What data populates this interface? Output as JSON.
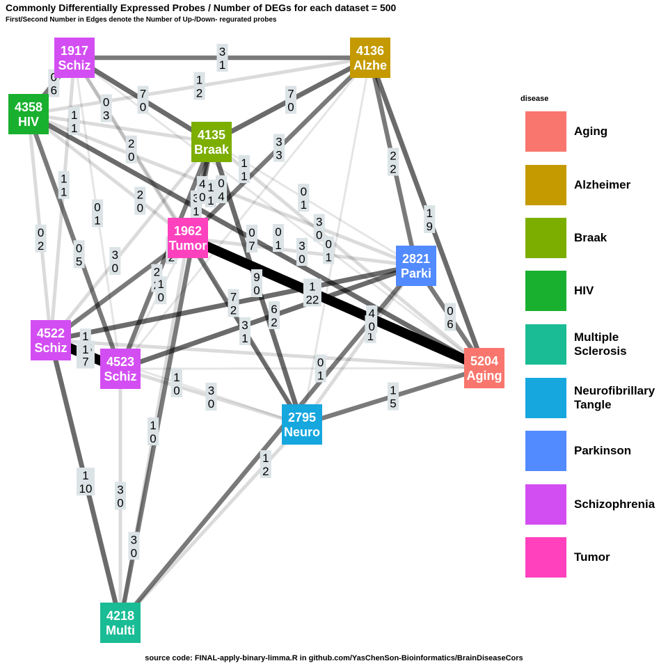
{
  "title": "Commonly Differentially Expressed Probes / Number of DEGs for each dataset = 500",
  "subtitle": "First/Second Number in Edges denote the Number of Up-/Down- regurated probes",
  "caption": "source code: FINAL-apply-binary-limma.R in github.com/YasChenSon-Bioinformatics/BrainDiseaseCors",
  "legend": {
    "title": "disease",
    "items": [
      {
        "label": "Aging",
        "color": "#F8766D"
      },
      {
        "label": "Alzheimer",
        "color": "#C49A00"
      },
      {
        "label": "Braak",
        "color": "#7CAE00"
      },
      {
        "label": "HIV",
        "color": "#1AB02F"
      },
      {
        "label": "Multiple Sclerosis",
        "color": "#1ABC95"
      },
      {
        "label": "Neurofibrillary Tangle",
        "color": "#15A7DE"
      },
      {
        "label": "Parkinson",
        "color": "#528AFF"
      },
      {
        "label": "Schizophrenia",
        "color": "#D34EF2"
      },
      {
        "label": "Tumor",
        "color": "#FF41BE"
      }
    ]
  },
  "nodes": [
    {
      "id": "n1917",
      "line1": "1917",
      "line2": "Schiz",
      "color": "#D34EF2"
    },
    {
      "id": "n4136",
      "line1": "4136",
      "line2": "Alzhe",
      "color": "#C49A00"
    },
    {
      "id": "n4358",
      "line1": "4358",
      "line2": "HIV",
      "color": "#1AB02F"
    },
    {
      "id": "n4135",
      "line1": "4135",
      "line2": "Braak",
      "color": "#7CAE00"
    },
    {
      "id": "n1962",
      "line1": "1962",
      "line2": "Tumor",
      "color": "#FF41BE"
    },
    {
      "id": "n2821",
      "line1": "2821",
      "line2": "Parki",
      "color": "#528AFF"
    },
    {
      "id": "n4522",
      "line1": "4522",
      "line2": "Schiz",
      "color": "#D34EF2"
    },
    {
      "id": "n4523",
      "line1": "4523",
      "line2": "Schiz",
      "color": "#D34EF2"
    },
    {
      "id": "n5204",
      "line1": "5204",
      "line2": "Aging",
      "color": "#F8766D"
    },
    {
      "id": "n2795",
      "line1": "2795",
      "line2": "Neuro",
      "color": "#15A7DE"
    },
    {
      "id": "n4218",
      "line1": "4218",
      "line2": "Multi",
      "color": "#1ABC95"
    }
  ],
  "edges": [
    {
      "from": "n1917",
      "to": "n4136",
      "up": "3",
      "down": "1"
    },
    {
      "from": "n4358",
      "to": "n4136",
      "up": "1",
      "down": "2"
    },
    {
      "from": "n1917",
      "to": "n4358",
      "up": "0",
      "down": "6"
    },
    {
      "from": "n1917",
      "to": "n4135",
      "up": "7",
      "down": "0"
    },
    {
      "from": "n4135",
      "to": "n4136",
      "up": "7",
      "down": "0"
    },
    {
      "from": "n1962",
      "to": "n4136",
      "up": "3",
      "down": "3"
    },
    {
      "from": "n2795",
      "to": "n4136",
      "up": "",
      "down": ""
    },
    {
      "from": "n4523",
      "to": "n4136",
      "up": "",
      "down": ""
    },
    {
      "from": "n2821",
      "to": "n4136",
      "up": "2",
      "down": "2"
    },
    {
      "from": "n5204",
      "to": "n4136",
      "up": "1",
      "down": "9"
    },
    {
      "from": "n1917",
      "to": "n2795",
      "up": "2",
      "down": "0"
    },
    {
      "from": "n1917",
      "to": "n1962",
      "up": "0",
      "down": "3"
    },
    {
      "from": "n1917",
      "to": "n4523",
      "up": "0",
      "down": "1"
    },
    {
      "from": "n1917",
      "to": "n4522",
      "up": "1",
      "down": "1"
    },
    {
      "from": "n4358",
      "to": "n4522",
      "up": "0",
      "down": "2"
    },
    {
      "from": "n4358",
      "to": "n4523",
      "up": "0",
      "down": "5"
    },
    {
      "from": "n4358",
      "to": "n5204",
      "up": "0",
      "down": "7"
    },
    {
      "from": "n4358",
      "to": "n2821",
      "up": "3",
      "down": "0"
    },
    {
      "from": "n4358",
      "to": "n1962",
      "up": "2",
      "down": "0"
    },
    {
      "from": "n4135",
      "to": "n1962",
      "up": "3",
      "down": "1"
    },
    {
      "from": "n4135",
      "to": "n4522",
      "up": "3",
      "down": "0"
    },
    {
      "from": "n4135",
      "to": "n4523",
      "up": "2",
      "down": "2"
    },
    {
      "from": "n4135",
      "to": "n2795",
      "up": "9",
      "down": "0"
    },
    {
      "from": "n4135",
      "to": "n5204",
      "up": "1",
      "down": "1"
    },
    {
      "from": "n4135",
      "to": "n2821",
      "up": "0",
      "down": "1"
    },
    {
      "from": "n4135",
      "to": "n4218",
      "up": "4",
      "down": "0"
    },
    {
      "from": "n1962",
      "to": "n5204",
      "up": "1",
      "down": "22"
    },
    {
      "from": "n1962",
      "to": "n2821",
      "up": "3",
      "down": "0"
    },
    {
      "from": "n1962",
      "to": "n2795",
      "up": "3",
      "down": "1"
    },
    {
      "from": "n1962",
      "to": "n4218",
      "up": "3",
      "down": "0"
    },
    {
      "from": "n2821",
      "to": "n4522",
      "up": "7",
      "down": "2"
    },
    {
      "from": "n2821",
      "to": "n4523",
      "up": "6",
      "down": "2"
    },
    {
      "from": "n2821",
      "to": "n2795",
      "up": "1",
      "down": "1"
    },
    {
      "from": "n2821",
      "to": "n5204",
      "up": "0",
      "down": "6"
    },
    {
      "from": "n2821",
      "to": "n4218",
      "up": "4",
      "down": "0"
    },
    {
      "from": "n4522",
      "to": "n4523",
      "up": "15",
      "down": "7"
    },
    {
      "from": "n4522",
      "to": "n5204",
      "up": "1",
      "down": "1"
    },
    {
      "from": "n4522",
      "to": "n2795",
      "up": "1",
      "down": "0"
    },
    {
      "from": "n4522",
      "to": "n4218",
      "up": "1",
      "down": "10"
    },
    {
      "from": "n4523",
      "to": "n2795",
      "up": "3",
      "down": "0"
    },
    {
      "from": "n4523",
      "to": "n5204",
      "up": "0",
      "down": "1"
    },
    {
      "from": "n4523",
      "to": "n4218",
      "up": "3",
      "down": "0"
    },
    {
      "from": "n2795",
      "to": "n5204",
      "up": "1",
      "down": "5"
    },
    {
      "from": "n2795",
      "to": "n4218",
      "up": "1",
      "down": "2"
    },
    {
      "from": "n4135",
      "to": "n4358",
      "up": "1",
      "down": "1"
    },
    {
      "from": "n1962",
      "to": "n4522",
      "up": "4",
      "down": "2"
    },
    {
      "from": "n4523",
      "to": "n1962",
      "up": "1",
      "down": "0"
    },
    {
      "from": "n1917",
      "to": "n5204",
      "up": "0",
      "down": "1"
    }
  ],
  "extra_labels": [
    {
      "up": "0",
      "down": "1"
    },
    {
      "up": "1",
      "down": "0"
    },
    {
      "up": "1",
      "down": "0"
    },
    {
      "up": "0",
      "down": "4"
    },
    {
      "up": "1",
      "down": "1"
    }
  ]
}
